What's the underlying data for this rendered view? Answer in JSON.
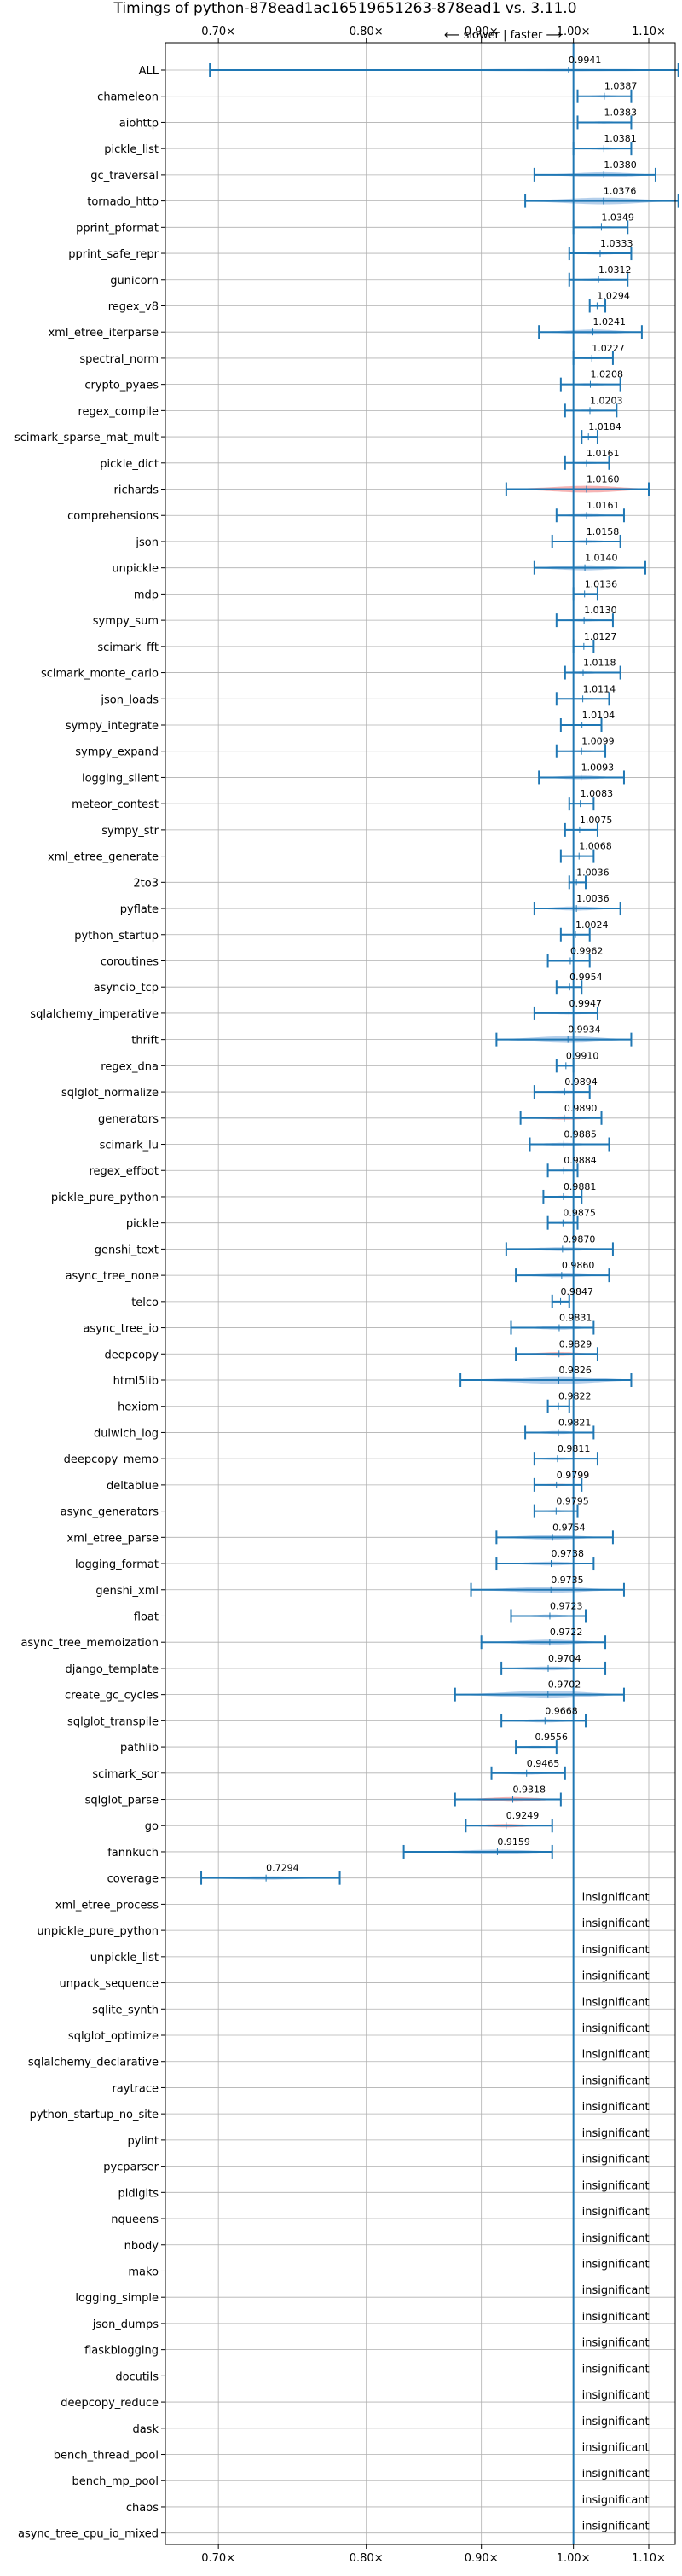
{
  "chart_data": {
    "type": "violin",
    "title": "Timings of python-878ead1ac16519651263-878ead1 vs. 3.11.0",
    "direction_label": "⟵ slower | faster ⟶",
    "xscale": "reciprocal",
    "x_ticks": [
      {
        "value": 0.7,
        "label": "0.70×"
      },
      {
        "value": 0.8,
        "label": "0.80×"
      },
      {
        "value": 0.9,
        "label": "0.90×"
      },
      {
        "value": 1.0,
        "label": "1.00×"
      },
      {
        "value": 1.1,
        "label": "1.10×"
      }
    ],
    "xlim": [
      0.67,
      1.14
    ],
    "grid": true,
    "colors": {
      "normal": "#a7c7e7",
      "highlight": "#f4a6a6",
      "line": "#1f77b4"
    },
    "insignificant_label": "insignificant",
    "benchmarks": [
      {
        "name": "ALL",
        "value": 0.9941,
        "label": "0.9941",
        "lo": 0.695,
        "hi": 1.145,
        "hw": 0.03,
        "red": false
      },
      {
        "name": "chameleon",
        "value": 1.0387,
        "label": "1.0387",
        "lo": 1.005,
        "hi": 1.075,
        "hw": 0.028,
        "red": false
      },
      {
        "name": "aiohttp",
        "value": 1.0383,
        "label": "1.0383",
        "lo": 1.005,
        "hi": 1.075,
        "hw": 0.025,
        "red": false
      },
      {
        "name": "pickle_list",
        "value": 1.0381,
        "label": "1.0381",
        "lo": 1.0,
        "hi": 1.075,
        "hw": 0.028,
        "red": false
      },
      {
        "name": "gc_traversal",
        "value": 1.038,
        "label": "1.0380",
        "lo": 0.955,
        "hi": 1.11,
        "hw": 0.06,
        "red": false
      },
      {
        "name": "tornado_http",
        "value": 1.0376,
        "label": "1.0376",
        "lo": 0.945,
        "hi": 1.145,
        "hw": 0.08,
        "red": false
      },
      {
        "name": "pprint_pformat",
        "value": 1.0349,
        "label": "1.0349",
        "lo": 1.0,
        "hi": 1.07,
        "hw": 0.025,
        "red": false
      },
      {
        "name": "pprint_safe_repr",
        "value": 1.0333,
        "label": "1.0333",
        "lo": 0.995,
        "hi": 1.075,
        "hw": 0.03,
        "red": false
      },
      {
        "name": "gunicorn",
        "value": 1.0312,
        "label": "1.0312",
        "lo": 0.995,
        "hi": 1.07,
        "hw": 0.03,
        "red": false
      },
      {
        "name": "regex_v8",
        "value": 1.0294,
        "label": "1.0294",
        "lo": 1.02,
        "hi": 1.04,
        "hw": 0.012,
        "red": false
      },
      {
        "name": "xml_etree_iterparse",
        "value": 1.0241,
        "label": "1.0241",
        "lo": 0.96,
        "hi": 1.09,
        "hw": 0.06,
        "red": false
      },
      {
        "name": "spectral_norm",
        "value": 1.0227,
        "label": "1.0227",
        "lo": 1.0,
        "hi": 1.05,
        "hw": 0.02,
        "red": false
      },
      {
        "name": "crypto_pyaes",
        "value": 1.0208,
        "label": "1.0208",
        "lo": 0.985,
        "hi": 1.06,
        "hw": 0.03,
        "red": false
      },
      {
        "name": "regex_compile",
        "value": 1.0203,
        "label": "1.0203",
        "lo": 0.99,
        "hi": 1.055,
        "hw": 0.025,
        "red": false
      },
      {
        "name": "scimark_sparse_mat_mult",
        "value": 1.0184,
        "label": "1.0184",
        "lo": 1.01,
        "hi": 1.03,
        "hw": 0.01,
        "red": false
      },
      {
        "name": "pickle_dict",
        "value": 1.0161,
        "label": "1.0161",
        "lo": 0.99,
        "hi": 1.045,
        "hw": 0.025,
        "red": false
      },
      {
        "name": "richards",
        "value": 1.016,
        "label": "1.0160",
        "lo": 0.925,
        "hi": 1.1,
        "hw": 0.08,
        "red": true
      },
      {
        "name": "comprehensions",
        "value": 1.0161,
        "label": "1.0161",
        "lo": 0.98,
        "hi": 1.065,
        "hw": 0.035,
        "red": false
      },
      {
        "name": "json",
        "value": 1.0158,
        "label": "1.0158",
        "lo": 0.975,
        "hi": 1.06,
        "hw": 0.035,
        "red": false
      },
      {
        "name": "unpickle",
        "value": 1.014,
        "label": "1.0140",
        "lo": 0.955,
        "hi": 1.095,
        "hw": 0.06,
        "red": false
      },
      {
        "name": "mdp",
        "value": 1.0136,
        "label": "1.0136",
        "lo": 1.0,
        "hi": 1.03,
        "hw": 0.015,
        "red": false
      },
      {
        "name": "sympy_sum",
        "value": 1.013,
        "label": "1.0130",
        "lo": 0.98,
        "hi": 1.05,
        "hw": 0.03,
        "red": false
      },
      {
        "name": "scimark_fft",
        "value": 1.0127,
        "label": "1.0127",
        "lo": 1.0,
        "hi": 1.025,
        "hw": 0.012,
        "red": false
      },
      {
        "name": "scimark_monte_carlo",
        "value": 1.0118,
        "label": "1.0118",
        "lo": 0.99,
        "hi": 1.06,
        "hw": 0.03,
        "red": false
      },
      {
        "name": "json_loads",
        "value": 1.0114,
        "label": "1.0114",
        "lo": 0.98,
        "hi": 1.045,
        "hw": 0.025,
        "red": false
      },
      {
        "name": "sympy_integrate",
        "value": 1.0104,
        "label": "1.0104",
        "lo": 0.985,
        "hi": 1.035,
        "hw": 0.02,
        "red": false
      },
      {
        "name": "sympy_expand",
        "value": 1.0099,
        "label": "1.0099",
        "lo": 0.98,
        "hi": 1.04,
        "hw": 0.025,
        "red": false
      },
      {
        "name": "logging_silent",
        "value": 1.0093,
        "label": "1.0093",
        "lo": 0.96,
        "hi": 1.065,
        "hw": 0.045,
        "red": false
      },
      {
        "name": "meteor_contest",
        "value": 1.0083,
        "label": "1.0083",
        "lo": 0.995,
        "hi": 1.025,
        "hw": 0.015,
        "red": false
      },
      {
        "name": "sympy_str",
        "value": 1.0075,
        "label": "1.0075",
        "lo": 0.99,
        "hi": 1.03,
        "hw": 0.02,
        "red": false
      },
      {
        "name": "xml_etree_generate",
        "value": 1.0068,
        "label": "1.0068",
        "lo": 0.985,
        "hi": 1.025,
        "hw": 0.02,
        "red": false
      },
      {
        "name": "2to3",
        "value": 1.0036,
        "label": "1.0036",
        "lo": 0.995,
        "hi": 1.015,
        "hw": 0.01,
        "red": false
      },
      {
        "name": "pyflate",
        "value": 1.0036,
        "label": "1.0036",
        "lo": 0.955,
        "hi": 1.06,
        "hw": 0.05,
        "red": false
      },
      {
        "name": "python_startup",
        "value": 1.0024,
        "label": "1.0024",
        "lo": 0.985,
        "hi": 1.02,
        "hw": 0.015,
        "red": false
      },
      {
        "name": "coroutines",
        "value": 0.9962,
        "label": "0.9962",
        "lo": 0.97,
        "hi": 1.02,
        "hw": 0.02,
        "red": true
      },
      {
        "name": "asyncio_tcp",
        "value": 0.9954,
        "label": "0.9954",
        "lo": 0.98,
        "hi": 1.01,
        "hw": 0.015,
        "red": false
      },
      {
        "name": "sqlalchemy_imperative",
        "value": 0.9947,
        "label": "0.9947",
        "lo": 0.955,
        "hi": 1.03,
        "hw": 0.03,
        "red": false
      },
      {
        "name": "thrift",
        "value": 0.9934,
        "label": "0.9934",
        "lo": 0.915,
        "hi": 1.075,
        "hw": 0.08,
        "red": false
      },
      {
        "name": "regex_dna",
        "value": 0.991,
        "label": "0.9910",
        "lo": 0.98,
        "hi": 1.0,
        "hw": 0.01,
        "red": false
      },
      {
        "name": "sqlglot_normalize",
        "value": 0.9894,
        "label": "0.9894",
        "lo": 0.955,
        "hi": 1.02,
        "hw": 0.03,
        "red": false
      },
      {
        "name": "generators",
        "value": 0.989,
        "label": "0.9890",
        "lo": 0.94,
        "hi": 1.035,
        "hw": 0.04,
        "red": true
      },
      {
        "name": "scimark_lu",
        "value": 0.9885,
        "label": "0.9885",
        "lo": 0.95,
        "hi": 1.045,
        "hw": 0.035,
        "red": false
      },
      {
        "name": "regex_effbot",
        "value": 0.9884,
        "label": "0.9884",
        "lo": 0.97,
        "hi": 1.005,
        "hw": 0.02,
        "red": false
      },
      {
        "name": "pickle_pure_python",
        "value": 0.9881,
        "label": "0.9881",
        "lo": 0.965,
        "hi": 1.01,
        "hw": 0.025,
        "red": true
      },
      {
        "name": "pickle",
        "value": 0.9875,
        "label": "0.9875",
        "lo": 0.97,
        "hi": 1.005,
        "hw": 0.02,
        "red": false
      },
      {
        "name": "genshi_text",
        "value": 0.987,
        "label": "0.9870",
        "lo": 0.925,
        "hi": 1.05,
        "hw": 0.045,
        "red": false
      },
      {
        "name": "async_tree_none",
        "value": 0.986,
        "label": "0.9860",
        "lo": 0.935,
        "hi": 1.045,
        "hw": 0.045,
        "red": false
      },
      {
        "name": "telco",
        "value": 0.9847,
        "label": "0.9847",
        "lo": 0.975,
        "hi": 0.995,
        "hw": 0.01,
        "red": false
      },
      {
        "name": "async_tree_io",
        "value": 0.9831,
        "label": "0.9831",
        "lo": 0.93,
        "hi": 1.025,
        "hw": 0.045,
        "red": false
      },
      {
        "name": "deepcopy",
        "value": 0.9829,
        "label": "0.9829",
        "lo": 0.935,
        "hi": 1.03,
        "hw": 0.045,
        "red": true
      },
      {
        "name": "html5lib",
        "value": 0.9826,
        "label": "0.9826",
        "lo": 0.88,
        "hi": 1.075,
        "hw": 0.09,
        "red": false
      },
      {
        "name": "hexiom",
        "value": 0.9822,
        "label": "0.9822",
        "lo": 0.97,
        "hi": 0.995,
        "hw": 0.015,
        "red": true
      },
      {
        "name": "dulwich_log",
        "value": 0.9821,
        "label": "0.9821",
        "lo": 0.945,
        "hi": 1.025,
        "hw": 0.035,
        "red": false
      },
      {
        "name": "deepcopy_memo",
        "value": 0.9811,
        "label": "0.9811",
        "lo": 0.955,
        "hi": 1.03,
        "hw": 0.03,
        "red": false
      },
      {
        "name": "deltablue",
        "value": 0.9799,
        "label": "0.9799",
        "lo": 0.955,
        "hi": 1.01,
        "hw": 0.025,
        "red": true
      },
      {
        "name": "async_generators",
        "value": 0.9795,
        "label": "0.9795",
        "lo": 0.955,
        "hi": 1.005,
        "hw": 0.025,
        "red": false
      },
      {
        "name": "xml_etree_parse",
        "value": 0.9754,
        "label": "0.9754",
        "lo": 0.915,
        "hi": 1.05,
        "hw": 0.055,
        "red": false
      },
      {
        "name": "logging_format",
        "value": 0.9738,
        "label": "0.9738",
        "lo": 0.915,
        "hi": 1.025,
        "hw": 0.045,
        "red": false
      },
      {
        "name": "genshi_xml",
        "value": 0.9735,
        "label": "0.9735",
        "lo": 0.89,
        "hi": 1.065,
        "hw": 0.07,
        "red": false
      },
      {
        "name": "float",
        "value": 0.9723,
        "label": "0.9723",
        "lo": 0.93,
        "hi": 1.015,
        "hw": 0.035,
        "red": false
      },
      {
        "name": "async_tree_memoization",
        "value": 0.9722,
        "label": "0.9722",
        "lo": 0.9,
        "hi": 1.04,
        "hw": 0.06,
        "red": false
      },
      {
        "name": "django_template",
        "value": 0.9704,
        "label": "0.9704",
        "lo": 0.92,
        "hi": 1.04,
        "hw": 0.045,
        "red": false
      },
      {
        "name": "create_gc_cycles",
        "value": 0.9702,
        "label": "0.9702",
        "lo": 0.875,
        "hi": 1.065,
        "hw": 0.09,
        "red": false
      },
      {
        "name": "sqlglot_transpile",
        "value": 0.9668,
        "label": "0.9668",
        "lo": 0.92,
        "hi": 1.015,
        "hw": 0.04,
        "red": false
      },
      {
        "name": "pathlib",
        "value": 0.9556,
        "label": "0.9556",
        "lo": 0.935,
        "hi": 0.98,
        "hw": 0.025,
        "red": false
      },
      {
        "name": "scimark_sor",
        "value": 0.9465,
        "label": "0.9465",
        "lo": 0.91,
        "hi": 0.99,
        "hw": 0.035,
        "red": false
      },
      {
        "name": "sqlglot_parse",
        "value": 0.9318,
        "label": "0.9318",
        "lo": 0.875,
        "hi": 0.985,
        "hw": 0.055,
        "red": true
      },
      {
        "name": "go",
        "value": 0.9249,
        "label": "0.9249",
        "lo": 0.885,
        "hi": 0.975,
        "hw": 0.04,
        "red": true
      },
      {
        "name": "fannkuch",
        "value": 0.9159,
        "label": "0.9159",
        "lo": 0.83,
        "hi": 0.975,
        "hw": 0.05,
        "red": false
      },
      {
        "name": "coverage",
        "value": 0.7294,
        "label": "0.7294",
        "lo": 0.69,
        "hi": 0.78,
        "hw": 0.04,
        "red": false
      },
      {
        "name": "xml_etree_process",
        "insignificant": true
      },
      {
        "name": "unpickle_pure_python",
        "insignificant": true
      },
      {
        "name": "unpickle_list",
        "insignificant": true
      },
      {
        "name": "unpack_sequence",
        "insignificant": true
      },
      {
        "name": "sqlite_synth",
        "insignificant": true
      },
      {
        "name": "sqlglot_optimize",
        "insignificant": true
      },
      {
        "name": "sqlalchemy_declarative",
        "insignificant": true
      },
      {
        "name": "raytrace",
        "insignificant": true
      },
      {
        "name": "python_startup_no_site",
        "insignificant": true
      },
      {
        "name": "pylint",
        "insignificant": true
      },
      {
        "name": "pycparser",
        "insignificant": true
      },
      {
        "name": "pidigits",
        "insignificant": true
      },
      {
        "name": "nqueens",
        "insignificant": true
      },
      {
        "name": "nbody",
        "insignificant": true
      },
      {
        "name": "mako",
        "insignificant": true
      },
      {
        "name": "logging_simple",
        "insignificant": true
      },
      {
        "name": "json_dumps",
        "insignificant": true
      },
      {
        "name": "flaskblogging",
        "insignificant": true
      },
      {
        "name": "docutils",
        "insignificant": true
      },
      {
        "name": "deepcopy_reduce",
        "insignificant": true
      },
      {
        "name": "dask",
        "insignificant": true
      },
      {
        "name": "bench_thread_pool",
        "insignificant": true
      },
      {
        "name": "bench_mp_pool",
        "insignificant": true
      },
      {
        "name": "chaos",
        "insignificant": true
      },
      {
        "name": "async_tree_cpu_io_mixed",
        "insignificant": true
      }
    ]
  }
}
